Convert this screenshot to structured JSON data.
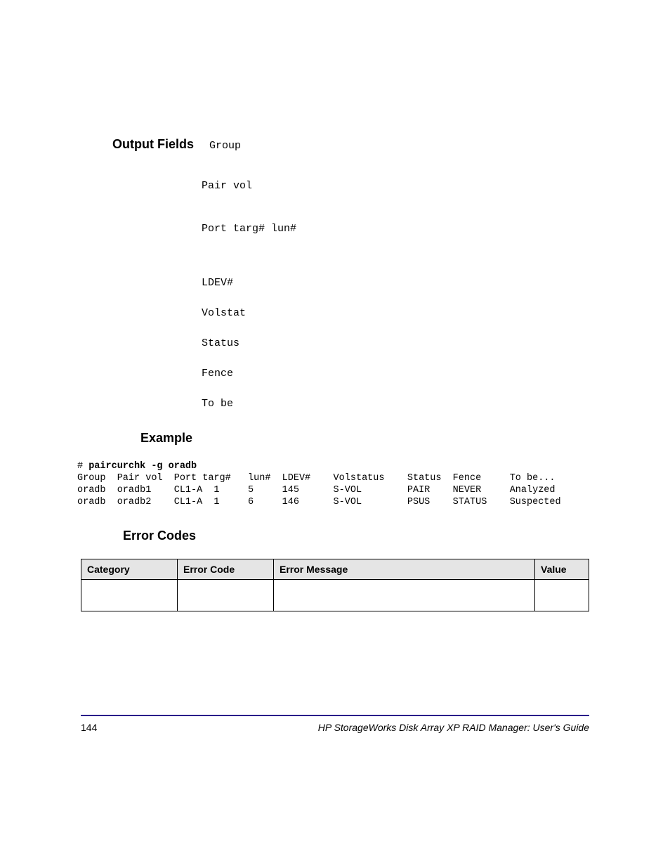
{
  "sections": {
    "outputFields": {
      "heading": "Output Fields",
      "items": [
        {
          "text": "Group",
          "gapClass": "gap-large"
        },
        {
          "text": "Pair vol",
          "gapClass": "gap-large"
        },
        {
          "text": "Port targ# lun#",
          "gapClass": "gap-xlarge"
        },
        {
          "text": "LDEV#",
          "gapClass": "gap-med"
        },
        {
          "text": "Volstat",
          "gapClass": "gap-med"
        },
        {
          "text": "Status",
          "gapClass": "gap-med"
        },
        {
          "text": "Fence",
          "gapClass": "gap-med"
        },
        {
          "text": "To be",
          "gapClass": ""
        }
      ]
    },
    "example": {
      "heading": "Example",
      "prompt": "# ",
      "command": "paircurchk -g oradb",
      "headerLine": "Group  Pair vol  Port targ#   lun#  LDEV#    Volstatus    Status  Fence     To be...",
      "rows": [
        "oradb  oradb1    CL1-A  1     5     145      S-VOL        PAIR    NEVER     Analyzed",
        "oradb  oradb2    CL1-A  1     6     146      S-VOL        PSUS    STATUS    Suspected"
      ]
    },
    "errorCodes": {
      "heading": "Error Codes",
      "headers": [
        "Category",
        "Error Code",
        "Error Message",
        "Value"
      ],
      "rows": [
        [
          "",
          "",
          "",
          ""
        ]
      ]
    }
  },
  "footer": {
    "pageNumber": "144",
    "docTitle": "HP StorageWorks Disk Array XP RAID Manager: User's Guide"
  },
  "style": {
    "borderColor": "#2a1a8a",
    "tableHeaderBg": "#e5e5e5",
    "monoFont": "Courier New",
    "bodyFont": "Arial",
    "headingFontSize": 18,
    "monoFontSize": 15,
    "exampleFontSize": 13.5
  }
}
